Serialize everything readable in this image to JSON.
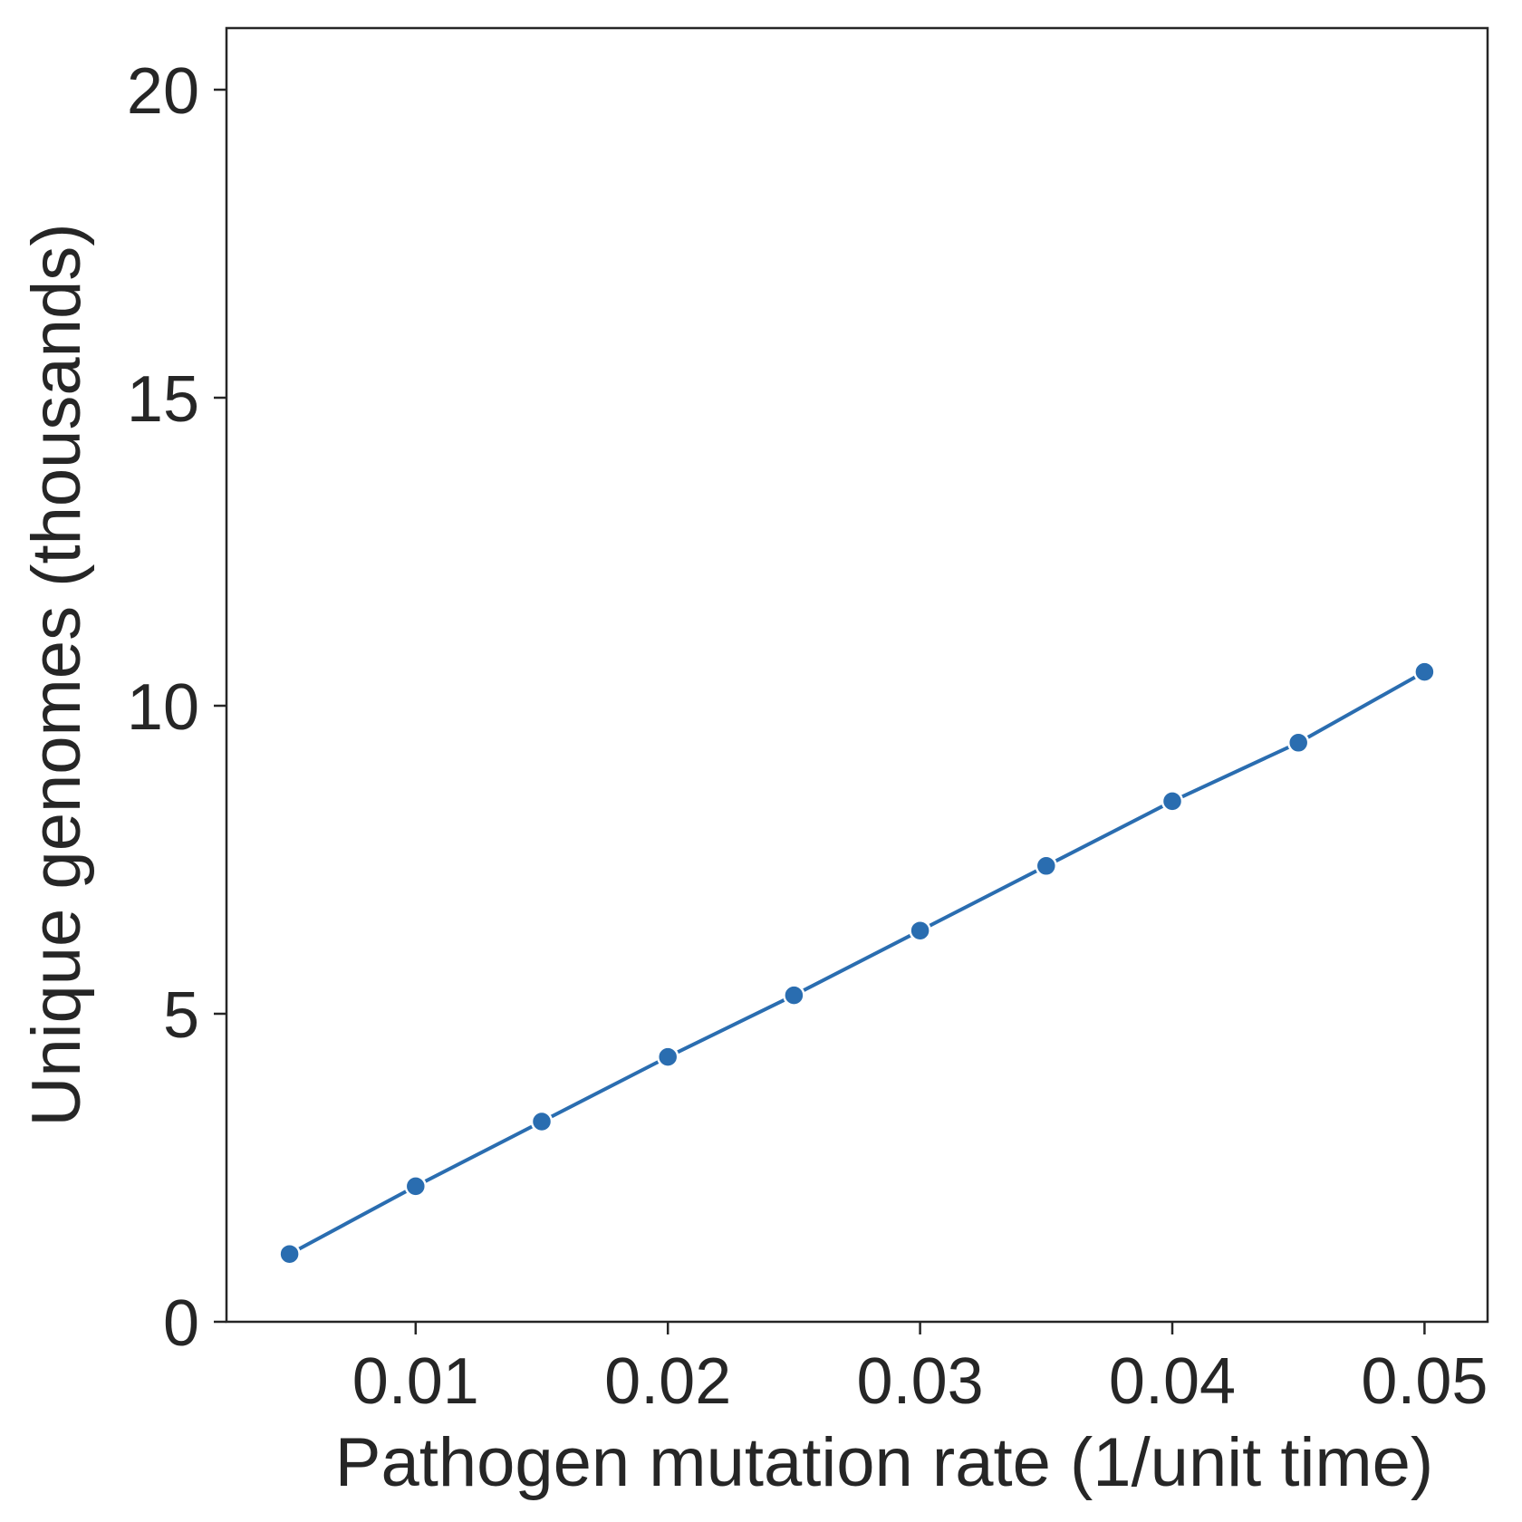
{
  "chart_data": {
    "type": "line",
    "title": "",
    "xlabel": "Pathogen mutation rate (1/unit time)",
    "ylabel": "Unique genomes (thousands)",
    "xlim": [
      0.0025,
      0.0525
    ],
    "ylim": [
      0,
      21
    ],
    "xticks": [
      0.01,
      0.02,
      0.03,
      0.04,
      0.05
    ],
    "xtick_labels": [
      "0.01",
      "0.02",
      "0.03",
      "0.04",
      "0.05"
    ],
    "yticks": [
      0,
      5,
      10,
      15,
      20
    ],
    "ytick_labels": [
      "0",
      "5",
      "10",
      "15",
      "20"
    ],
    "grid": false,
    "line_color": "#2a6db0",
    "marker_color": "#2a6db0",
    "marker_edge_color": "#ffffff",
    "series": [
      {
        "x": [
          0.005,
          0.01,
          0.015,
          0.02,
          0.025,
          0.03,
          0.035,
          0.04,
          0.045,
          0.05
        ],
        "y": [
          1.1,
          2.2,
          3.25,
          4.3,
          5.3,
          6.35,
          7.4,
          8.45,
          9.4,
          10.55
        ]
      }
    ]
  }
}
